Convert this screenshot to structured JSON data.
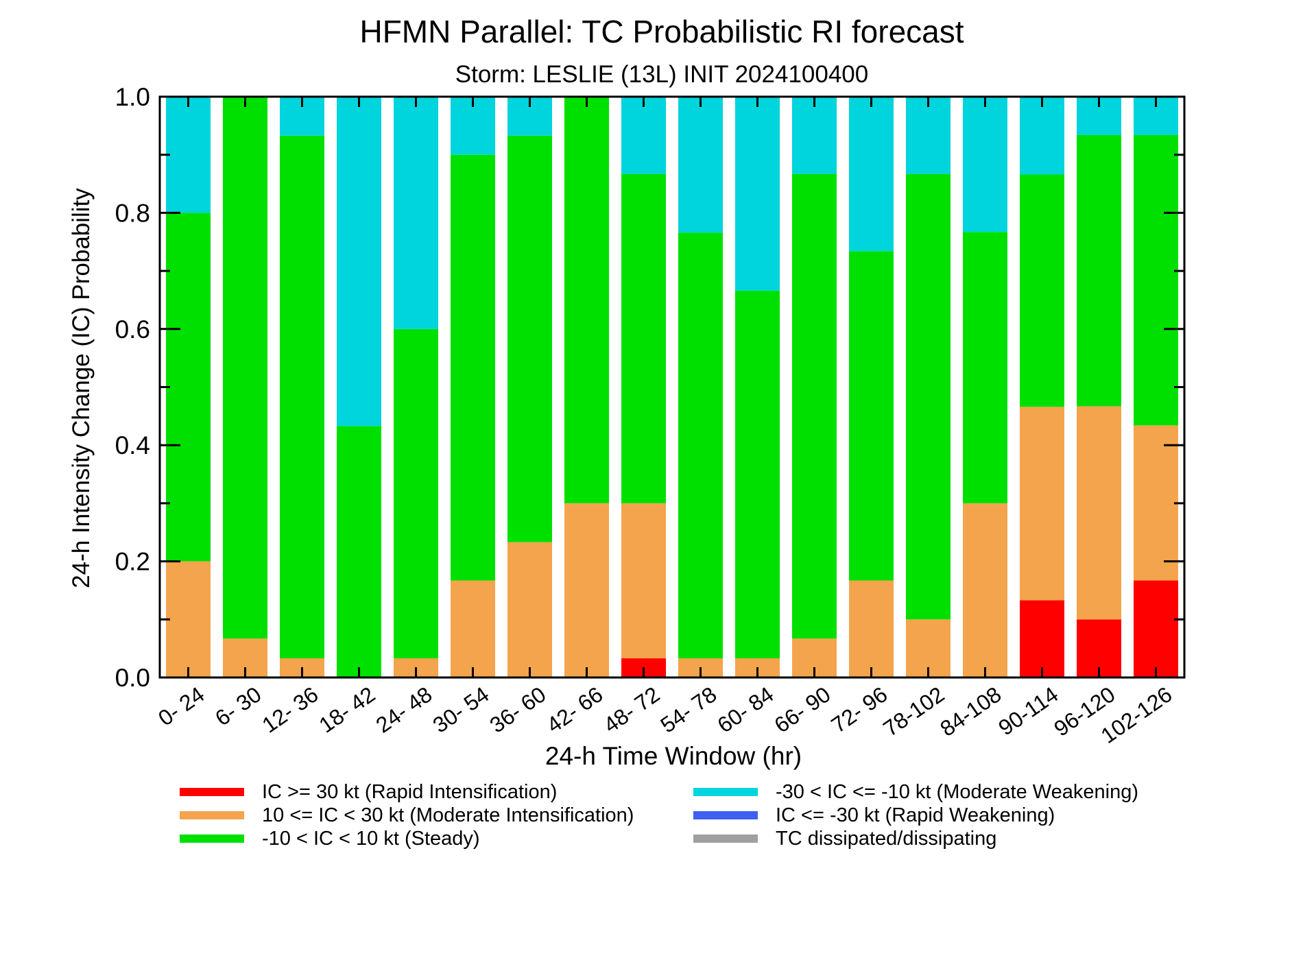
{
  "chart_data": {
    "type": "bar",
    "stacked": true,
    "title": "HFMN Parallel: TC Probabilistic RI forecast",
    "subtitle": "Storm: LESLIE (13L) INIT 2024100400",
    "xlabel": "24-h Time Window (hr)",
    "ylabel": "24-h Intensity Change (IC) Probability",
    "ylim": [
      0,
      1
    ],
    "yticks": [
      "0.0",
      "0.2",
      "0.4",
      "0.6",
      "0.8",
      "1.0"
    ],
    "categories": [
      "0- 24",
      "6- 30",
      "12- 36",
      "18- 42",
      "24- 48",
      "30- 54",
      "36- 60",
      "42- 66",
      "48- 72",
      "54- 78",
      "60- 84",
      "66- 90",
      "72- 96",
      "78-102",
      "84-108",
      "90-114",
      "96-120",
      "102-126"
    ],
    "series": [
      {
        "name": "IC >= 30 kt (Rapid Intensification)",
        "color": "#ff0000",
        "values": [
          0,
          0,
          0,
          0,
          0,
          0,
          0,
          0,
          0.033,
          0,
          0,
          0,
          0,
          0,
          0,
          0.133,
          0.1,
          0.167
        ]
      },
      {
        "name": "10 <= IC < 30 kt (Moderate Intensification)",
        "color": "#f4a44c",
        "values": [
          0.2,
          0.067,
          0.033,
          0,
          0.033,
          0.167,
          0.233,
          0.3,
          0.267,
          0.033,
          0.033,
          0.067,
          0.167,
          0.1,
          0.3,
          0.333,
          0.367,
          0.267
        ]
      },
      {
        "name": "-10 < IC < 10 kt (Steady)",
        "color": "#00e000",
        "values": [
          0.6,
          0.933,
          0.9,
          0.433,
          0.567,
          0.733,
          0.7,
          0.7,
          0.567,
          0.733,
          0.633,
          0.8,
          0.567,
          0.767,
          0.467,
          0.4,
          0.467,
          0.5
        ]
      },
      {
        "name": "-30 < IC <= -10 kt (Moderate Weakening)",
        "color": "#00d4dc",
        "values": [
          0.2,
          0,
          0.067,
          0.567,
          0.4,
          0.1,
          0.067,
          0,
          0.133,
          0.233,
          0.333,
          0.133,
          0.267,
          0.133,
          0.233,
          0.133,
          0.067,
          0.067
        ]
      },
      {
        "name": "IC <= -30 kt (Rapid Weakening)",
        "color": "#3e5ff0",
        "values": [
          0,
          0,
          0,
          0,
          0,
          0,
          0,
          0,
          0,
          0,
          0,
          0,
          0,
          0,
          0,
          0,
          0,
          0
        ]
      },
      {
        "name": "TC dissipated/dissipating",
        "color": "#a0a0a0",
        "values": [
          0,
          0,
          0,
          0,
          0,
          0,
          0,
          0,
          0,
          0,
          0,
          0,
          0,
          0,
          0,
          0,
          0,
          0
        ]
      }
    ],
    "legend": {
      "placement": "bottom",
      "left_column": [
        0,
        1,
        2
      ],
      "right_column": [
        3,
        4,
        5
      ]
    }
  }
}
